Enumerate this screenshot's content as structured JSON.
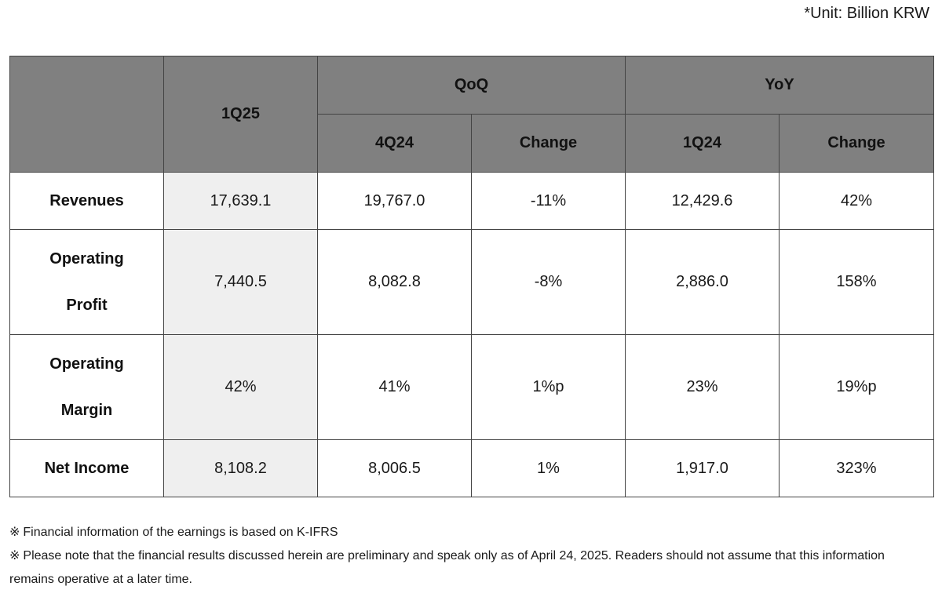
{
  "unit_label": "*Unit: Billion KRW",
  "table": {
    "header": {
      "corner": "",
      "current_period": "1Q25",
      "qoq_group": "QoQ",
      "yoy_group": "YoY",
      "qoq_period": "4Q24",
      "qoq_change": "Change",
      "yoy_period": "1Q24",
      "yoy_change": "Change"
    },
    "rows": [
      {
        "label_line1": "Revenues",
        "label_line2": "",
        "q1_25": "17,639.1",
        "q4_24": "19,767.0",
        "qoq": "-11%",
        "q1_24": "12,429.6",
        "yoy": "42%"
      },
      {
        "label_line1": "Operating",
        "label_line2": "Profit",
        "q1_25": "7,440.5",
        "q4_24": "8,082.8",
        "qoq": "-8%",
        "q1_24": "2,886.0",
        "yoy": "158%"
      },
      {
        "label_line1": "Operating",
        "label_line2": "Margin",
        "q1_25": "42%",
        "q4_24": "41%",
        "qoq": "1%p",
        "q1_24": "23%",
        "yoy": "19%p"
      },
      {
        "label_line1": "Net Income",
        "label_line2": "",
        "q1_25": "8,108.2",
        "q4_24": "8,006.5",
        "qoq": "1%",
        "q1_24": "1,917.0",
        "yoy": "323%"
      }
    ]
  },
  "notes": {
    "mark": "※",
    "note1": "Financial information of the earnings is based on K-IFRS",
    "note2": "Please note that the financial results discussed herein are preliminary and speak only as of April 24, 2025. Readers should not assume that this information remains operative at a later time."
  }
}
